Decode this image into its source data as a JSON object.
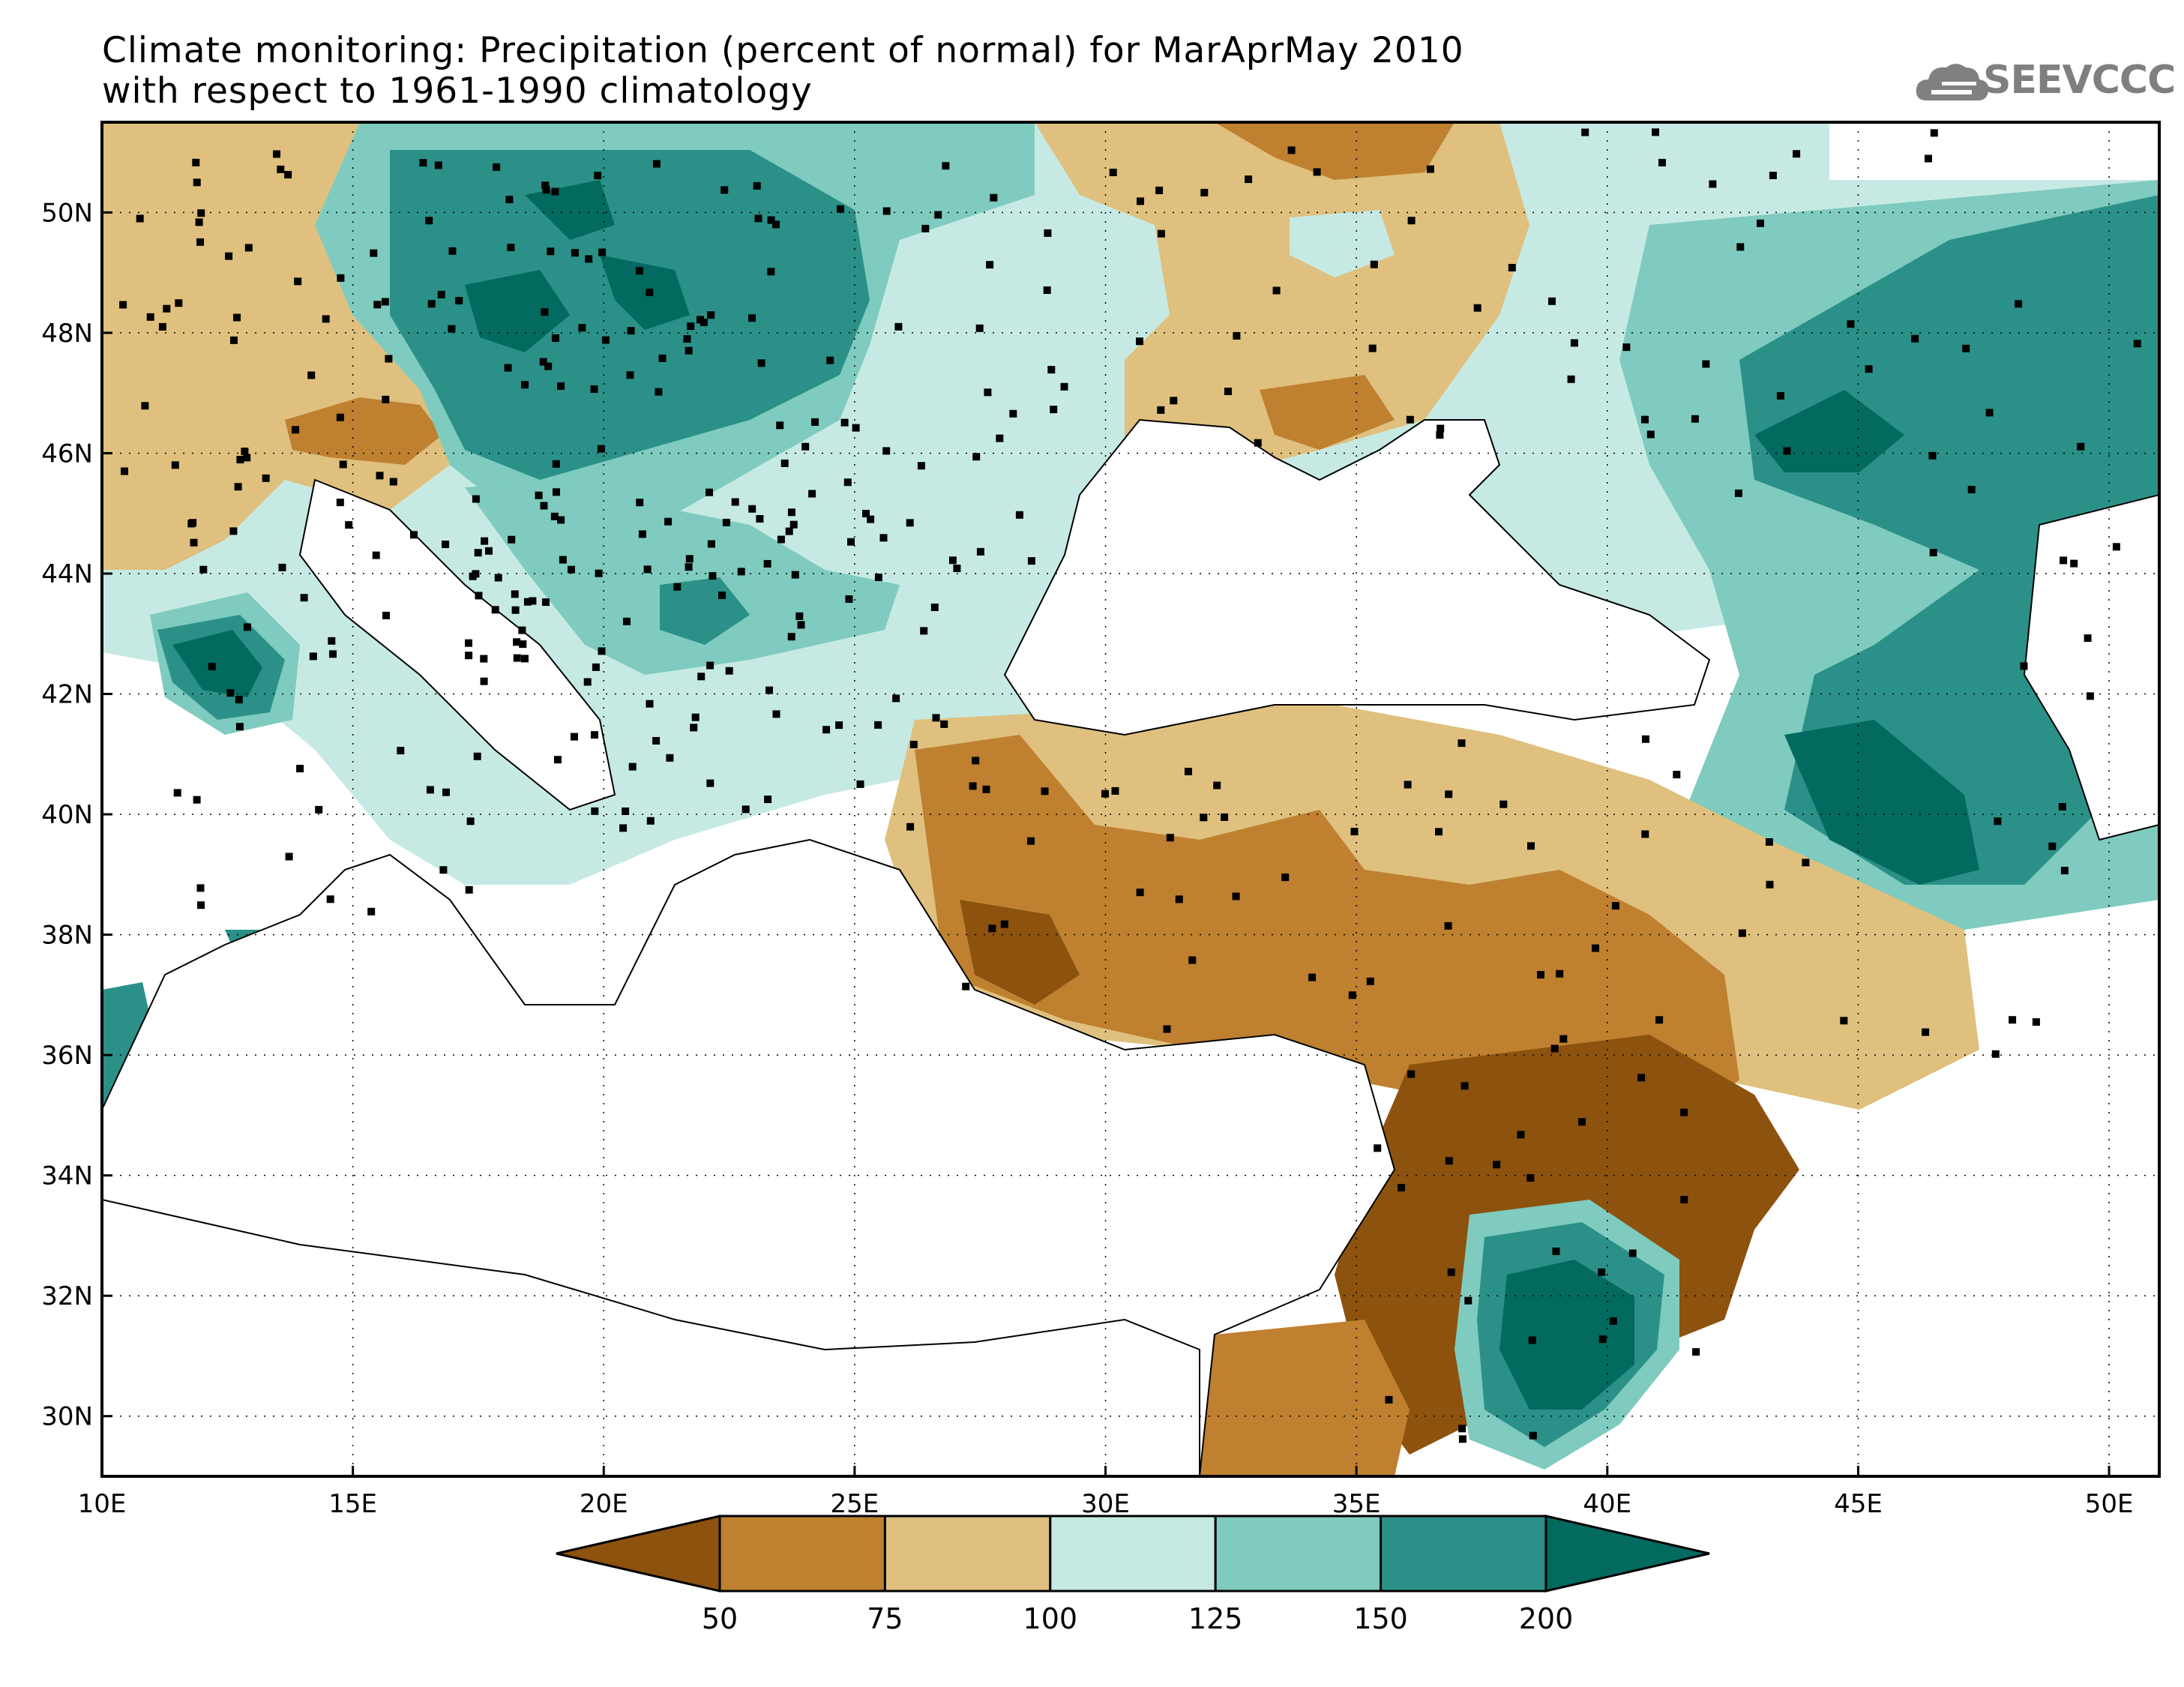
{
  "title": {
    "line1": "Climate monitoring: Precipitation (percent of normal) for MarAprMay 2010",
    "line2": "with respect to 1961-1990 climatology"
  },
  "logo": {
    "text": "SEEVCCC",
    "icon": "cloud-icon",
    "color": "#808080"
  },
  "map": {
    "lon_range": [
      10,
      51
    ],
    "lat_range": [
      29,
      51.5
    ],
    "lon_ticks": [
      "10E",
      "15E",
      "20E",
      "25E",
      "30E",
      "35E",
      "40E",
      "45E",
      "50E"
    ],
    "lat_ticks": [
      "30N",
      "32N",
      "34N",
      "36N",
      "38N",
      "40N",
      "42N",
      "44N",
      "46N",
      "48N",
      "50N"
    ],
    "gridlines": "dotted"
  },
  "colorbar": {
    "labels": [
      "50",
      "75",
      "100",
      "125",
      "150",
      "200"
    ],
    "colors": [
      "#8c520e",
      "#bf8030",
      "#dfc07e",
      "#c6eae3",
      "#7fcbbf",
      "#2b9188",
      "#026a5f"
    ]
  }
}
